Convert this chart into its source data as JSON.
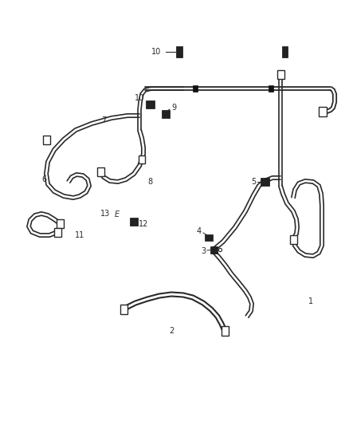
{
  "bg_color": "#ffffff",
  "line_color": "#2a2a2a",
  "label_color": "#1a1a1a",
  "fig_width": 4.38,
  "fig_height": 5.33,
  "dpi": 100
}
